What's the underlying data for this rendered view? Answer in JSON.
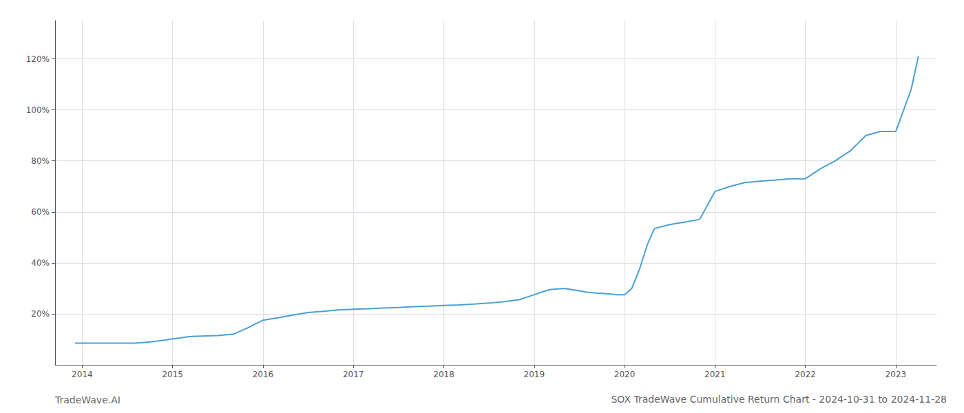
{
  "chart_data": {
    "type": "line",
    "title": "SOX TradeWave Cumulative Return Chart - 2024-10-31 to 2024-11-28",
    "annotations": [
      "TradeWave.AI"
    ],
    "x": [
      2013.92,
      2014.0,
      2014.08,
      2014.17,
      2014.25,
      2014.33,
      2014.42,
      2014.5,
      2014.58,
      2014.67,
      2014.75,
      2014.83,
      2014.92,
      2015.0,
      2015.08,
      2015.17,
      2015.25,
      2015.33,
      2015.5,
      2015.67,
      2015.83,
      2016.0,
      2016.17,
      2016.33,
      2016.5,
      2016.67,
      2016.83,
      2017.0,
      2017.17,
      2017.33,
      2017.5,
      2017.67,
      2017.83,
      2018.0,
      2018.17,
      2018.33,
      2018.5,
      2018.67,
      2018.83,
      2019.0,
      2019.08,
      2019.17,
      2019.33,
      2019.5,
      2019.58,
      2019.67,
      2019.75,
      2019.83,
      2019.92,
      2020.0,
      2020.08,
      2020.17,
      2020.25,
      2020.33,
      2020.5,
      2020.67,
      2020.83,
      2021.0,
      2021.17,
      2021.33,
      2021.5,
      2021.67,
      2021.83,
      2022.0,
      2022.17,
      2022.33,
      2022.5,
      2022.67,
      2022.83,
      2023.0,
      2023.17,
      2023.25
    ],
    "values": [
      8.5,
      8.5,
      8.5,
      8.5,
      8.5,
      8.5,
      8.5,
      8.5,
      8.5,
      8.7,
      9.0,
      9.3,
      9.7,
      10.2,
      10.5,
      11.0,
      11.2,
      11.3,
      11.5,
      12.0,
      14.5,
      17.5,
      18.5,
      19.5,
      20.5,
      21.0,
      21.5,
      21.8,
      22.0,
      22.3,
      22.5,
      22.8,
      23.0,
      23.3,
      23.5,
      23.8,
      24.2,
      24.8,
      25.5,
      27.5,
      28.5,
      29.5,
      30.0,
      29.0,
      28.5,
      28.2,
      28.0,
      27.8,
      27.5,
      27.5,
      30.0,
      38.0,
      47.0,
      53.5,
      55.0,
      56.0,
      57.0,
      68.0,
      70.0,
      71.5,
      72.0,
      72.5,
      73.0,
      73.0,
      77.0,
      80.0,
      84.0,
      90.0,
      91.5,
      91.5,
      108.0,
      121.0
    ],
    "color": "#4a9fd4",
    "xlim": [
      2013.7,
      2023.45
    ],
    "xticks": [
      2014,
      2015,
      2016,
      2017,
      2018,
      2019,
      2020,
      2021,
      2022,
      2023
    ],
    "ylim": [
      0,
      135
    ],
    "yticks": [
      {
        "value": 20,
        "label": "20%"
      },
      {
        "value": 40,
        "label": "40%"
      },
      {
        "value": 60,
        "label": "60%"
      },
      {
        "value": 80,
        "label": "80%"
      },
      {
        "value": 100,
        "label": "100%"
      },
      {
        "value": 120,
        "label": "120%"
      }
    ],
    "grid": true
  }
}
